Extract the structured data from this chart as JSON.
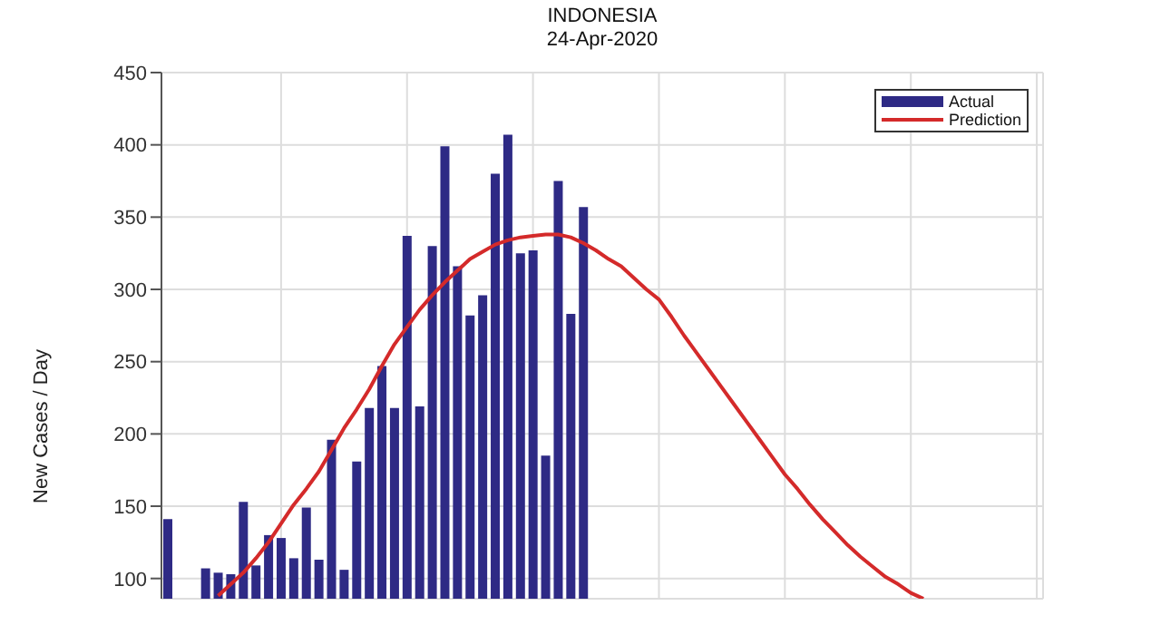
{
  "chart_data": {
    "type": "bar",
    "title": "INDONESIA",
    "subtitle": "24-Apr-2020",
    "ylabel": "New Cases / Day",
    "categories": [
      null,
      null,
      null,
      null,
      null,
      null,
      null,
      null,
      null,
      null,
      null,
      null,
      null,
      null,
      null,
      null,
      null,
      null,
      null,
      null,
      null,
      null,
      null,
      null,
      null,
      null,
      null,
      null,
      null,
      null,
      null,
      null,
      null,
      null,
      null,
      null,
      null,
      null,
      null,
      null,
      null,
      null,
      null,
      null,
      null,
      null,
      null,
      null,
      null,
      null,
      null,
      null,
      null,
      null,
      null,
      null,
      null,
      null,
      null,
      null,
      null,
      null,
      null,
      null,
      null,
      null,
      null,
      null,
      null,
      null
    ],
    "series": [
      {
        "name": "Actual",
        "color": "#2e2a85",
        "values": [
          141,
          null,
          null,
          107,
          104,
          103,
          153,
          109,
          130,
          128,
          114,
          149,
          113,
          196,
          106,
          181,
          218,
          247,
          218,
          337,
          219,
          330,
          399,
          316,
          282,
          296,
          380,
          407,
          325,
          327,
          185,
          375,
          283,
          357,
          null,
          null,
          null,
          null,
          null,
          null,
          null,
          null,
          null,
          null,
          null,
          null,
          null,
          null,
          null,
          null,
          null,
          null,
          null,
          null,
          null,
          null,
          null,
          null,
          null,
          null,
          null,
          null,
          null,
          null,
          null,
          null,
          null,
          null,
          null,
          null
        ]
      },
      {
        "name": "Prediction",
        "type": "line",
        "color": "#d42a2a",
        "values": [
          null,
          null,
          null,
          null,
          88,
          96,
          104,
          114,
          125,
          138,
          151,
          162,
          174,
          189,
          204,
          217,
          231,
          247,
          262,
          274,
          286,
          296,
          305,
          313,
          321,
          326,
          331,
          334,
          336,
          337,
          338,
          338,
          336,
          332,
          327,
          321,
          316,
          308,
          300,
          293,
          281,
          268,
          256,
          244,
          232,
          220,
          208,
          196,
          184,
          172,
          162,
          151,
          141,
          132,
          123,
          115,
          108,
          101,
          96,
          90,
          86,
          null,
          null,
          null,
          null,
          null,
          null,
          null,
          null,
          null
        ]
      }
    ],
    "ylim": [
      86,
      450
    ],
    "yticks": [
      100,
      150,
      200,
      250,
      300,
      350,
      400,
      450
    ],
    "grid": true,
    "legend": "top right",
    "marker": "none",
    "line_style": "solid"
  }
}
